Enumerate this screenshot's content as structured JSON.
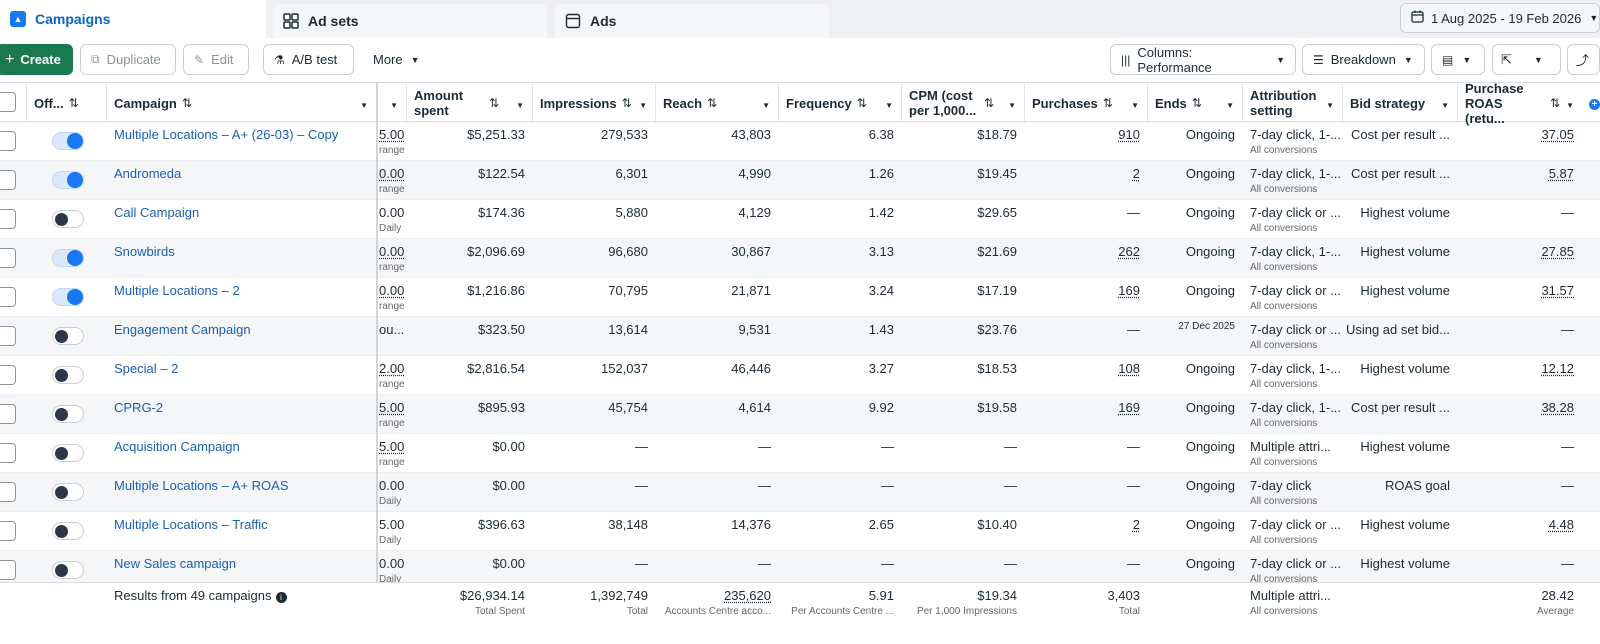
{
  "tabs": {
    "campaigns": "Campaigns",
    "adsets": "Ad sets",
    "ads": "Ads"
  },
  "date_range": "1 Aug 2025 - 19 Feb 2026",
  "toolbar": {
    "create": "Create",
    "duplicate": "Duplicate",
    "edit": "Edit",
    "ab_test": "A/B test",
    "more": "More",
    "columns": "Columns: Performance",
    "breakdown": "Breakdown"
  },
  "headers": {
    "off_on": "Off...",
    "campaign": "Campaign",
    "amount_spent": "Amount spent",
    "impressions": "Impressions",
    "reach": "Reach",
    "frequency": "Frequency",
    "cpm": "CPM (cost per 1,000...",
    "purchases": "Purchases",
    "ends": "Ends",
    "attribution": "Attribution setting",
    "bid_strategy": "Bid strategy",
    "roas": "Purchase ROAS (retu..."
  },
  "rows": [
    {
      "name": "Multiple Locations – A+ (26-03) – Copy",
      "on": true,
      "budget": "5.00",
      "budget_sub": "range",
      "spent": "$5,251.33",
      "impressions": "279,533",
      "reach": "43,803",
      "frequency": "6.38",
      "cpm": "$18.79",
      "purchases": "910",
      "ends": "Ongoing",
      "attribution": "7-day click, 1-...",
      "attr_sub": "All conversions",
      "bid": "Cost per result ...",
      "roas": "37.05"
    },
    {
      "name": "Andromeda",
      "on": true,
      "budget": "0.00",
      "budget_sub": "range",
      "spent": "$122.54",
      "impressions": "6,301",
      "reach": "4,990",
      "frequency": "1.26",
      "cpm": "$19.45",
      "purchases": "2",
      "ends": "Ongoing",
      "attribution": "7-day click, 1-...",
      "attr_sub": "All conversions",
      "bid": "Cost per result ...",
      "roas": "5.87"
    },
    {
      "name": "Call Campaign",
      "on": false,
      "budget": "0.00",
      "budget_sub": "Daily",
      "spent": "$174.36",
      "impressions": "5,880",
      "reach": "4,129",
      "frequency": "1.42",
      "cpm": "$29.65",
      "purchases": "—",
      "ends": "Ongoing",
      "attribution": "7-day click or ...",
      "attr_sub": "All conversions",
      "bid": "Highest volume",
      "roas": "—"
    },
    {
      "name": "Snowbirds",
      "on": true,
      "budget": "0.00",
      "budget_sub": "range",
      "spent": "$2,096.69",
      "impressions": "96,680",
      "reach": "30,867",
      "frequency": "3.13",
      "cpm": "$21.69",
      "purchases": "262",
      "ends": "Ongoing",
      "attribution": "7-day click, 1-...",
      "attr_sub": "All conversions",
      "bid": "Highest volume",
      "roas": "27.85"
    },
    {
      "name": "Multiple Locations – 2",
      "on": true,
      "budget": "0.00",
      "budget_sub": "range",
      "spent": "$1,216.86",
      "impressions": "70,795",
      "reach": "21,871",
      "frequency": "3.24",
      "cpm": "$17.19",
      "purchases": "169",
      "ends": "Ongoing",
      "attribution": "7-day click or ...",
      "attr_sub": "All conversions",
      "bid": "Highest volume",
      "roas": "31.57"
    },
    {
      "name": "Engagement Campaign",
      "on": false,
      "budget": "ou...",
      "budget_sub": "",
      "spent": "$323.50",
      "impressions": "13,614",
      "reach": "9,531",
      "frequency": "1.43",
      "cpm": "$23.76",
      "purchases": "—",
      "ends": "27 Dec 2025",
      "attribution": "7-day click or ...",
      "attr_sub": "All conversions",
      "bid": "Using ad set bid...",
      "roas": "—"
    },
    {
      "name": "Special – 2",
      "on": false,
      "budget": "2.00",
      "budget_sub": "range",
      "spent": "$2,816.54",
      "impressions": "152,037",
      "reach": "46,446",
      "frequency": "3.27",
      "cpm": "$18.53",
      "purchases": "108",
      "ends": "Ongoing",
      "attribution": "7-day click, 1-...",
      "attr_sub": "All conversions",
      "bid": "Highest volume",
      "roas": "12.12"
    },
    {
      "name": "CPRG-2",
      "on": false,
      "budget": "5.00",
      "budget_sub": "range",
      "spent": "$895.93",
      "impressions": "45,754",
      "reach": "4,614",
      "frequency": "9.92",
      "cpm": "$19.58",
      "purchases": "169",
      "ends": "Ongoing",
      "attribution": "7-day click, 1-...",
      "attr_sub": "All conversions",
      "bid": "Cost per result ...",
      "roas": "38.28"
    },
    {
      "name": "Acquisition Campaign",
      "on": false,
      "budget": "5.00",
      "budget_sub": "range",
      "spent": "$0.00",
      "impressions": "—",
      "reach": "—",
      "frequency": "—",
      "cpm": "—",
      "purchases": "—",
      "ends": "Ongoing",
      "attribution": "Multiple attri...",
      "attr_sub": "All conversions",
      "bid": "Highest volume",
      "roas": "—"
    },
    {
      "name": "Multiple Locations – A+ ROAS",
      "on": false,
      "budget": "0.00",
      "budget_sub": "Daily",
      "spent": "$0.00",
      "impressions": "—",
      "reach": "—",
      "frequency": "—",
      "cpm": "—",
      "purchases": "—",
      "ends": "Ongoing",
      "attribution": "7-day click",
      "attr_sub": "All conversions",
      "bid": "ROAS goal",
      "roas": "—"
    },
    {
      "name": "Multiple Locations – Traffic",
      "on": false,
      "budget": "5.00",
      "budget_sub": "Daily",
      "spent": "$396.63",
      "impressions": "38,148",
      "reach": "14,376",
      "frequency": "2.65",
      "cpm": "$10.40",
      "purchases": "2",
      "ends": "Ongoing",
      "attribution": "7-day click or ...",
      "attr_sub": "All conversions",
      "bid": "Highest volume",
      "roas": "4.48"
    },
    {
      "name": "New Sales campaign",
      "on": false,
      "budget": "0.00",
      "budget_sub": "Daily",
      "spent": "$0.00",
      "impressions": "—",
      "reach": "—",
      "frequency": "—",
      "cpm": "—",
      "purchases": "—",
      "ends": "Ongoing",
      "attribution": "7-day click or ...",
      "attr_sub": "All conversions",
      "bid": "Highest volume",
      "roas": "—"
    }
  ],
  "footer": {
    "results": "Results from 49 campaigns",
    "spent": "$26,934.14",
    "spent_sub": "Total Spent",
    "impressions": "1,392,749",
    "impressions_sub": "Total",
    "reach": "235,620",
    "reach_sub": "Accounts Centre acco...",
    "frequency": "5.91",
    "frequency_sub": "Per Accounts Centre ...",
    "cpm": "$19.34",
    "cpm_sub": "Per 1,000 Impressions",
    "purchases": "3,403",
    "purchases_sub": "Total",
    "attribution": "Multiple attri...",
    "attribution_sub": "All conversions",
    "roas": "28.42",
    "roas_sub": "Average"
  }
}
